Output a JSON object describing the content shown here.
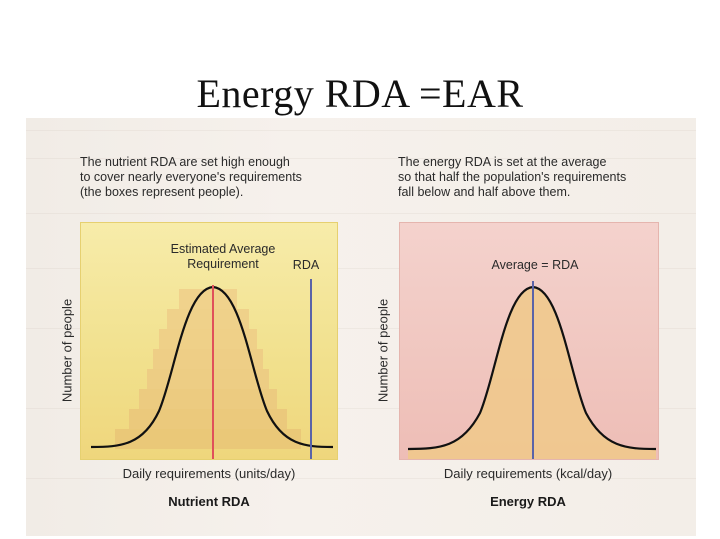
{
  "title": "Energy RDA =EAR",
  "left": {
    "caption": "The nutrient RDA are set high enough\nto cover nearly everyone's requirements\n(the boxes represent people).",
    "ylabel": "Number of people",
    "xlabel": "Daily requirements (units/day)",
    "panel_label": "Nutrient RDA",
    "ear_label": "Estimated Average\nRequirement",
    "rda_label": "RDA",
    "colors": {
      "ear_line": "#e0505a",
      "rda_line": "#5a63a8",
      "curve": "#111111",
      "boxes": "#eac878"
    }
  },
  "right": {
    "caption": "The energy RDA is set at the average\nso that half the population's requirements\nfall below and half above them.",
    "ylabel": "Number of people",
    "xlabel": "Daily requirements (kcal/day)",
    "panel_label": "Energy RDA",
    "avg_label": "Average = RDA",
    "colors": {
      "avg_line": "#5a63a8",
      "curve": "#111111",
      "fill": "#f0c98a"
    }
  }
}
